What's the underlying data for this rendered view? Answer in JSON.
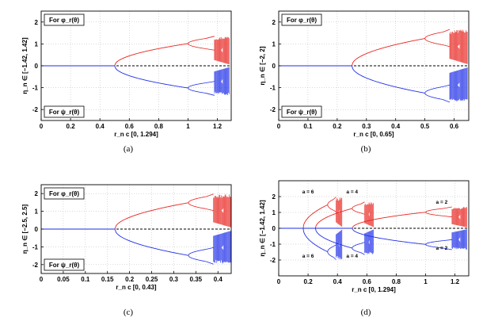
{
  "chart_data": [
    {
      "id": "a",
      "type": "line",
      "caption": "(a)",
      "xlabel": "r_n c [0, 1.294]",
      "ylabel": "η_n ∈ [−1.42, 1.42]",
      "xlim": [
        0,
        1.294
      ],
      "ylim": [
        -2.5,
        2.5
      ],
      "xticks": [
        "0",
        "0.2",
        "0.4",
        "0.6",
        "0.8",
        "1",
        "1.2"
      ],
      "xtick_values": [
        0,
        0.2,
        0.4,
        0.6,
        0.8,
        1,
        1.2
      ],
      "yticks": [
        "2",
        "1",
        "0",
        "-1",
        "-2"
      ],
      "ytick_values": [
        2,
        1,
        0,
        -1,
        -2
      ],
      "grid": true,
      "legend_top": "For φ_r(θ)",
      "legend_bottom": "For ψ_r(θ)",
      "series": [
        {
          "role": "upper",
          "color": "#e8231e",
          "bif": [
            0.5,
            1.0,
            1.12
          ],
          "chaos_start": 1.18,
          "amp": 1.3,
          "xmax": 1.28
        },
        {
          "role": "lower",
          "color": "#1e2ee8",
          "bif": [
            0.5,
            1.0,
            1.12
          ],
          "chaos_start": 1.18,
          "amp": 1.3,
          "xmax": 1.28
        }
      ]
    },
    {
      "id": "b",
      "type": "line",
      "caption": "(b)",
      "xlabel": "r_n c [0, 0.65]",
      "ylabel": "η_n ∈ [−2, 2]",
      "xlim": [
        0,
        0.65
      ],
      "ylim": [
        -2.5,
        2.5
      ],
      "xticks": [
        "0",
        "0.1",
        "0.2",
        "0.3",
        "0.4",
        "0.5",
        "0.6"
      ],
      "xtick_values": [
        0,
        0.1,
        0.2,
        0.3,
        0.4,
        0.5,
        0.6
      ],
      "yticks": [
        "2",
        "1",
        "0",
        "-1",
        "-2"
      ],
      "ytick_values": [
        2,
        1,
        0,
        -1,
        -2
      ],
      "grid": true,
      "legend_top": "For φ_r(θ)",
      "legend_bottom": "For ψ_r(θ)",
      "series": [
        {
          "role": "upper",
          "color": "#e8231e",
          "bif": [
            0.25,
            0.5,
            0.56
          ],
          "chaos_start": 0.585,
          "amp": 1.6,
          "xmax": 0.645
        },
        {
          "role": "lower",
          "color": "#1e2ee8",
          "bif": [
            0.25,
            0.5,
            0.56
          ],
          "chaos_start": 0.585,
          "amp": 1.6,
          "xmax": 0.645
        }
      ]
    },
    {
      "id": "c",
      "type": "line",
      "caption": "(c)",
      "xlabel": "r_n c [0, 0.43]",
      "ylabel": "η_n ∈ [−2.5, 2.5]",
      "xlim": [
        0,
        0.43
      ],
      "ylim": [
        -2.5,
        2.5
      ],
      "xticks": [
        "0",
        "0.05",
        "0.1",
        "0.15",
        "0.2",
        "0.25",
        "0.3",
        "0.35",
        "0.4"
      ],
      "xtick_values": [
        0,
        0.05,
        0.1,
        0.15,
        0.2,
        0.25,
        0.3,
        0.35,
        0.4
      ],
      "yticks": [
        "2",
        "1",
        "0",
        "-1",
        "-2"
      ],
      "ytick_values": [
        2,
        1,
        0,
        -1,
        -2
      ],
      "grid": true,
      "legend_top": "For φ_r(θ)",
      "legend_bottom": "For ψ_r(θ)",
      "series": [
        {
          "role": "upper",
          "color": "#e8231e",
          "bif": [
            0.1667,
            0.333,
            0.373
          ],
          "chaos_start": 0.39,
          "amp": 1.9,
          "xmax": 0.43
        },
        {
          "role": "lower",
          "color": "#1e2ee8",
          "bif": [
            0.1667,
            0.333,
            0.373
          ],
          "chaos_start": 0.39,
          "amp": 1.9,
          "xmax": 0.43
        }
      ]
    },
    {
      "id": "d",
      "type": "line",
      "caption": "(d)",
      "xlabel": "r_n c [0, 1.294]",
      "ylabel": "η_n ∈ [−1.42, 1.42]",
      "xlim": [
        0,
        1.294
      ],
      "ylim": [
        -3,
        3
      ],
      "xticks": [
        "0",
        "0.2",
        "0.4",
        "0.6",
        "0.8",
        "1",
        "1.2"
      ],
      "xtick_values": [
        0,
        0.2,
        0.4,
        0.6,
        0.8,
        1,
        1.2
      ],
      "yticks": [
        "2",
        "1",
        "0",
        "-1",
        "-2"
      ],
      "ytick_values": [
        2,
        1,
        0,
        -1,
        -2
      ],
      "grid": true,
      "annotations": [
        {
          "text": "a = 6",
          "x": 0.2,
          "y": 2.2
        },
        {
          "text": "a = 4",
          "x": 0.5,
          "y": 2.2
        },
        {
          "text": "a = 2",
          "x": 1.11,
          "y": 1.55
        },
        {
          "text": "a = 6",
          "x": 0.2,
          "y": -1.85
        },
        {
          "text": "a = 4",
          "x": 0.5,
          "y": -1.85
        },
        {
          "text": "a = 2",
          "x": 1.11,
          "y": -1.35
        }
      ],
      "series": [
        {
          "role": "upper",
          "color": "#e8231e",
          "bif": [
            0.1667,
            0.333,
            0.373
          ],
          "chaos_start": 0.39,
          "amp": 1.9,
          "xmax": 0.43
        },
        {
          "role": "lower",
          "color": "#1e2ee8",
          "bif": [
            0.1667,
            0.333,
            0.373
          ],
          "chaos_start": 0.39,
          "amp": 1.9,
          "xmax": 0.43
        },
        {
          "role": "upper",
          "color": "#e8231e",
          "bif": [
            0.25,
            0.5,
            0.56
          ],
          "chaos_start": 0.585,
          "amp": 1.6,
          "xmax": 0.645
        },
        {
          "role": "lower",
          "color": "#1e2ee8",
          "bif": [
            0.25,
            0.5,
            0.56
          ],
          "chaos_start": 0.585,
          "amp": 1.6,
          "xmax": 0.645
        },
        {
          "role": "upper",
          "color": "#e8231e",
          "bif": [
            0.5,
            1.0,
            1.12
          ],
          "chaos_start": 1.18,
          "amp": 1.3,
          "xmax": 1.28
        },
        {
          "role": "lower",
          "color": "#1e2ee8",
          "bif": [
            0.5,
            1.0,
            1.12
          ],
          "chaos_start": 1.18,
          "amp": 1.3,
          "xmax": 1.28
        }
      ]
    }
  ]
}
